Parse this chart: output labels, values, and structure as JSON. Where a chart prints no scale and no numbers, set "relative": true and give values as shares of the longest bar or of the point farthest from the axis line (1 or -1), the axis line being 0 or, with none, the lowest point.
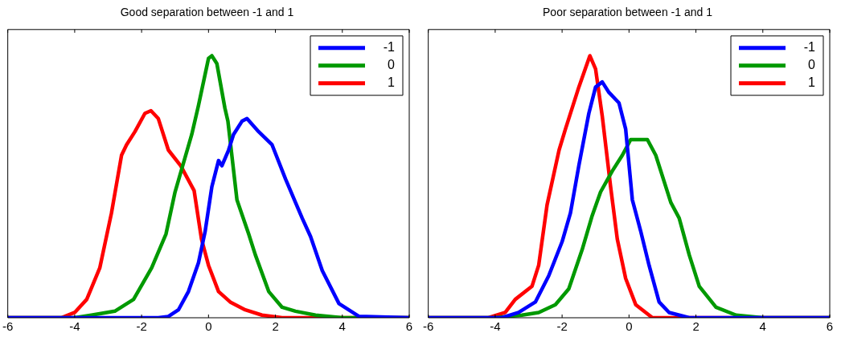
{
  "chart_data": [
    {
      "type": "line",
      "title": "Good separation between -1 and 1",
      "relative": true,
      "xlim": [
        -6,
        6
      ],
      "xticks": [
        -6,
        -4,
        -2,
        0,
        2,
        4,
        6
      ],
      "legend": "top right",
      "grid": false,
      "tick_labels": "x",
      "series": [
        {
          "name": "-1",
          "color": "#0000ff",
          "x": [
            -6,
            -1.5,
            -1.2,
            -0.9,
            -0.6,
            -0.3,
            -0.1,
            0.1,
            0.3,
            0.4,
            0.6,
            0.75,
            1.0,
            1.15,
            1.5,
            1.9,
            2.3,
            2.8,
            3.05,
            3.4,
            3.9,
            4.5,
            6
          ],
          "values": [
            0,
            0,
            0.005,
            0.03,
            0.1,
            0.21,
            0.33,
            0.5,
            0.6,
            0.58,
            0.64,
            0.7,
            0.75,
            0.76,
            0.71,
            0.66,
            0.53,
            0.38,
            0.31,
            0.18,
            0.054,
            0.005,
            0
          ]
        },
        {
          "name": "0",
          "color": "#009900",
          "x": [
            -6,
            -4,
            -3.5,
            -2.8,
            -2.24,
            -1.7,
            -1.27,
            -1,
            -0.5,
            -0.3,
            0,
            0.1,
            0.25,
            0.49,
            0.58,
            0.85,
            1.2,
            1.4,
            1.8,
            2.2,
            2.6,
            3.2,
            4,
            6
          ],
          "values": [
            0,
            0,
            0.01,
            0.025,
            0.07,
            0.19,
            0.32,
            0.48,
            0.7,
            0.81,
            0.99,
            1,
            0.97,
            0.8,
            0.75,
            0.45,
            0.32,
            0.24,
            0.1,
            0.04,
            0.025,
            0.01,
            0,
            0
          ]
        },
        {
          "name": "1",
          "color": "#ff0000",
          "x": [
            -6,
            -4.4,
            -4,
            -3.64,
            -3.25,
            -2.9,
            -2.6,
            -2.45,
            -2.2,
            -1.9,
            -1.72,
            -1.5,
            -1.2,
            -0.83,
            -0.43,
            -0.21,
            0,
            0.3,
            0.65,
            1.1,
            1.6,
            2.2,
            6
          ],
          "values": [
            0,
            0,
            0.02,
            0.07,
            0.19,
            0.4,
            0.62,
            0.66,
            0.71,
            0.78,
            0.79,
            0.76,
            0.64,
            0.58,
            0.485,
            0.3,
            0.2,
            0.1,
            0.06,
            0.03,
            0.01,
            0,
            0
          ]
        }
      ]
    },
    {
      "type": "line",
      "title": "Poor separation between -1 and 1",
      "relative": true,
      "xlim": [
        -6,
        6
      ],
      "xticks": [
        -6,
        -4,
        -2,
        0,
        2,
        4,
        6
      ],
      "legend": "top right",
      "grid": false,
      "tick_labels": "x",
      "series": [
        {
          "name": "-1",
          "color": "#0000ff",
          "x": [
            -6,
            -3.8,
            -3.3,
            -2.8,
            -2.4,
            -2,
            -1.75,
            -1.5,
            -1.2,
            -1,
            -0.8,
            -0.6,
            -0.3,
            -0.1,
            0.1,
            0.35,
            0.6,
            0.9,
            1.2,
            1.8,
            6
          ],
          "values": [
            0,
            0,
            0.02,
            0.06,
            0.16,
            0.29,
            0.4,
            0.58,
            0.78,
            0.88,
            0.9,
            0.86,
            0.82,
            0.72,
            0.45,
            0.33,
            0.2,
            0.06,
            0.02,
            0,
            0
          ]
        },
        {
          "name": "0",
          "color": "#009900",
          "x": [
            -6,
            -4,
            -3.2,
            -2.7,
            -2.2,
            -1.8,
            -1.4,
            -1.1,
            -0.85,
            -0.5,
            -0.2,
            0.05,
            0.3,
            0.55,
            0.8,
            1.25,
            1.5,
            1.8,
            2.1,
            2.6,
            3.2,
            4,
            6
          ],
          "values": [
            0,
            0,
            0.01,
            0.02,
            0.05,
            0.11,
            0.26,
            0.39,
            0.48,
            0.56,
            0.62,
            0.68,
            0.68,
            0.68,
            0.62,
            0.44,
            0.38,
            0.24,
            0.12,
            0.04,
            0.01,
            0,
            0
          ]
        },
        {
          "name": "1",
          "color": "#ff0000",
          "x": [
            -6,
            -4.2,
            -3.7,
            -3.4,
            -2.9,
            -2.7,
            -2.45,
            -2.09,
            -1.9,
            -1.5,
            -1.17,
            -1,
            -0.8,
            -0.55,
            -0.35,
            -0.1,
            0.2,
            0.7,
            6
          ],
          "values": [
            0,
            0,
            0.02,
            0.07,
            0.12,
            0.2,
            0.43,
            0.64,
            0.72,
            0.88,
            1,
            0.95,
            0.77,
            0.5,
            0.3,
            0.15,
            0.05,
            0,
            0
          ]
        }
      ]
    }
  ]
}
